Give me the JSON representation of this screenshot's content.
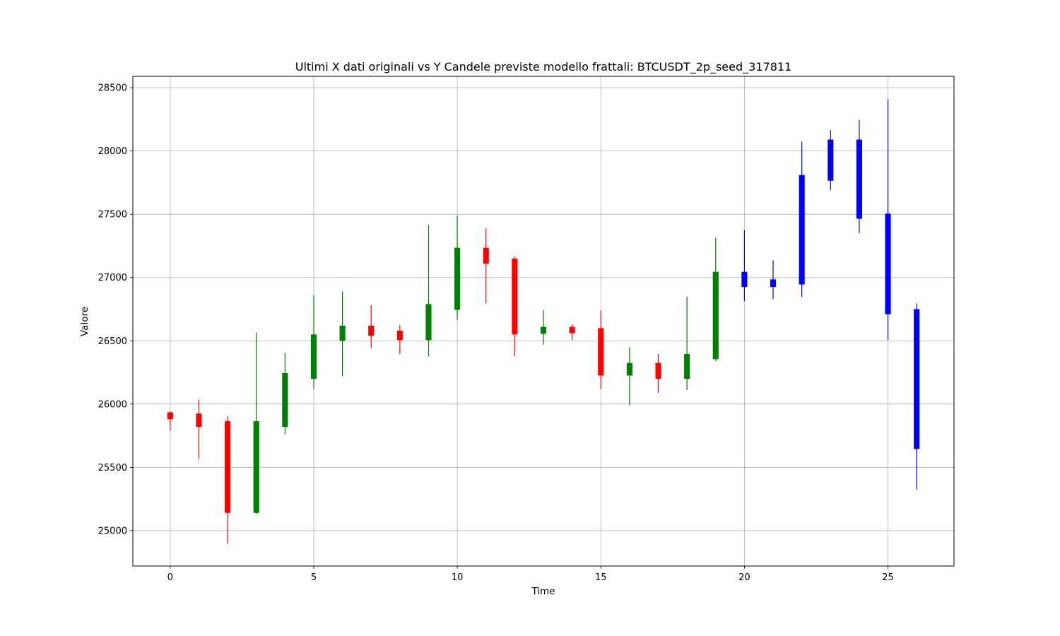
{
  "chart_data": {
    "type": "candlestick",
    "title": "Ultimi X dati originali vs Y Candele previste modello frattali: BTCUSDT_2p_seed_317811",
    "xlabel": "Time",
    "ylabel": "Valore",
    "xlim": [
      -1.3,
      27.3
    ],
    "ylim": [
      24720,
      28590
    ],
    "x_ticks": [
      0,
      5,
      10,
      15,
      20,
      25
    ],
    "y_ticks": [
      25000,
      25500,
      26000,
      26500,
      27000,
      27500,
      28000,
      28500
    ],
    "grid": true,
    "colors": {
      "up": "#008000",
      "down": "#ff0000",
      "forecast": "#0000ff",
      "grid": "#b0b0b0"
    },
    "candles": [
      {
        "t": 0,
        "open": 25935,
        "high": 25940,
        "low": 25790,
        "close": 25880,
        "kind": "down"
      },
      {
        "t": 1,
        "open": 25925,
        "high": 26035,
        "low": 25565,
        "close": 25820,
        "kind": "down"
      },
      {
        "t": 2,
        "open": 25865,
        "high": 25905,
        "low": 24895,
        "close": 25140,
        "kind": "down"
      },
      {
        "t": 3,
        "open": 25140,
        "high": 26565,
        "low": 25130,
        "close": 25865,
        "kind": "up"
      },
      {
        "t": 4,
        "open": 25820,
        "high": 26405,
        "low": 25760,
        "close": 26245,
        "kind": "up"
      },
      {
        "t": 5,
        "open": 26200,
        "high": 26860,
        "low": 26120,
        "close": 26550,
        "kind": "up"
      },
      {
        "t": 6,
        "open": 26500,
        "high": 26890,
        "low": 26220,
        "close": 26620,
        "kind": "up"
      },
      {
        "t": 7,
        "open": 26620,
        "high": 26780,
        "low": 26445,
        "close": 26540,
        "kind": "down"
      },
      {
        "t": 8,
        "open": 26580,
        "high": 26625,
        "low": 26395,
        "close": 26505,
        "kind": "down"
      },
      {
        "t": 9,
        "open": 26505,
        "high": 27415,
        "low": 26375,
        "close": 26790,
        "kind": "up"
      },
      {
        "t": 10,
        "open": 26745,
        "high": 27490,
        "low": 26665,
        "close": 27235,
        "kind": "up"
      },
      {
        "t": 11,
        "open": 27235,
        "high": 27390,
        "low": 26795,
        "close": 27110,
        "kind": "down"
      },
      {
        "t": 12,
        "open": 27150,
        "high": 27165,
        "low": 26375,
        "close": 26550,
        "kind": "down"
      },
      {
        "t": 13,
        "open": 26555,
        "high": 26745,
        "low": 26470,
        "close": 26610,
        "kind": "up"
      },
      {
        "t": 14,
        "open": 26610,
        "high": 26630,
        "low": 26505,
        "close": 26560,
        "kind": "down"
      },
      {
        "t": 15,
        "open": 26600,
        "high": 26740,
        "low": 26120,
        "close": 26225,
        "kind": "down"
      },
      {
        "t": 16,
        "open": 26225,
        "high": 26450,
        "low": 25990,
        "close": 26325,
        "kind": "up"
      },
      {
        "t": 17,
        "open": 26325,
        "high": 26395,
        "low": 26090,
        "close": 26200,
        "kind": "down"
      },
      {
        "t": 18,
        "open": 26200,
        "high": 26850,
        "low": 26110,
        "close": 26395,
        "kind": "up"
      },
      {
        "t": 19,
        "open": 26355,
        "high": 27315,
        "low": 26340,
        "close": 27045,
        "kind": "up"
      },
      {
        "t": 20,
        "open": 26925,
        "high": 27375,
        "low": 26815,
        "close": 27045,
        "kind": "forecast"
      },
      {
        "t": 21,
        "open": 26925,
        "high": 27135,
        "low": 26830,
        "close": 26985,
        "kind": "forecast"
      },
      {
        "t": 22,
        "open": 26945,
        "high": 28075,
        "low": 26845,
        "close": 27810,
        "kind": "forecast"
      },
      {
        "t": 23,
        "open": 27765,
        "high": 28165,
        "low": 27690,
        "close": 28090,
        "kind": "forecast"
      },
      {
        "t": 24,
        "open": 27465,
        "high": 28245,
        "low": 27350,
        "close": 28090,
        "kind": "forecast"
      },
      {
        "t": 25,
        "open": 27505,
        "high": 28410,
        "low": 26505,
        "close": 26710,
        "kind": "forecast"
      },
      {
        "t": 26,
        "open": 26750,
        "high": 26795,
        "low": 25325,
        "close": 25645,
        "kind": "forecast"
      }
    ]
  }
}
